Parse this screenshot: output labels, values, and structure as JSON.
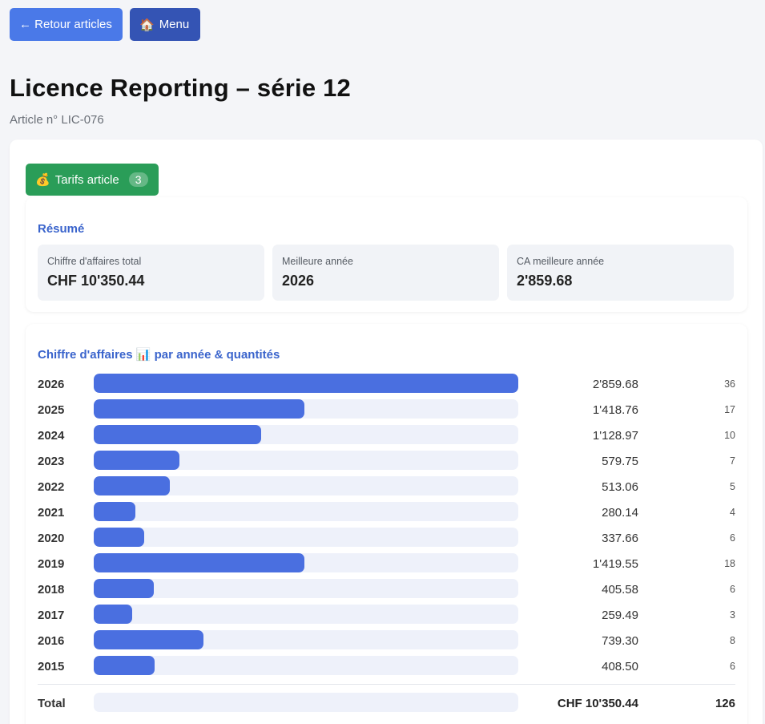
{
  "nav": {
    "back_label": "← Retour articles",
    "menu_icon": "🏠",
    "menu_label": "Menu"
  },
  "page": {
    "title": "Licence Reporting – série 12",
    "subtitle": "Article n° LIC-076"
  },
  "tab": {
    "icon": "💰",
    "label": "Tarifs article",
    "count": "3",
    "color": "#2a9d58"
  },
  "summary": {
    "title": "Résumé",
    "kpis": [
      {
        "label": "Chiffre d'affaires total",
        "value": "CHF 10'350.44"
      },
      {
        "label": "Meilleure année",
        "value": "2026"
      },
      {
        "label": "CA meilleure année",
        "value": "2'859.68"
      }
    ]
  },
  "chart_data": {
    "type": "bar",
    "title": "Chiffre d'affaires 📊 par année & quantités",
    "max_value": 2859.68,
    "rows": [
      {
        "year": "2026",
        "value": 2859.68,
        "amount": "2'859.68",
        "qty": "36"
      },
      {
        "year": "2025",
        "value": 1418.76,
        "amount": "1'418.76",
        "qty": "17"
      },
      {
        "year": "2024",
        "value": 1128.97,
        "amount": "1'128.97",
        "qty": "10"
      },
      {
        "year": "2023",
        "value": 579.75,
        "amount": "579.75",
        "qty": "7"
      },
      {
        "year": "2022",
        "value": 513.06,
        "amount": "513.06",
        "qty": "5"
      },
      {
        "year": "2021",
        "value": 280.14,
        "amount": "280.14",
        "qty": "4"
      },
      {
        "year": "2020",
        "value": 337.66,
        "amount": "337.66",
        "qty": "6"
      },
      {
        "year": "2019",
        "value": 1419.55,
        "amount": "1'419.55",
        "qty": "18"
      },
      {
        "year": "2018",
        "value": 405.58,
        "amount": "405.58",
        "qty": "6"
      },
      {
        "year": "2017",
        "value": 259.49,
        "amount": "259.49",
        "qty": "3"
      },
      {
        "year": "2016",
        "value": 739.3,
        "amount": "739.30",
        "qty": "8"
      },
      {
        "year": "2015",
        "value": 408.5,
        "amount": "408.50",
        "qty": "6"
      }
    ],
    "total": {
      "label": "Total",
      "amount": "CHF 10'350.44",
      "qty": "126"
    },
    "bar_color": "#4a6fe0"
  }
}
